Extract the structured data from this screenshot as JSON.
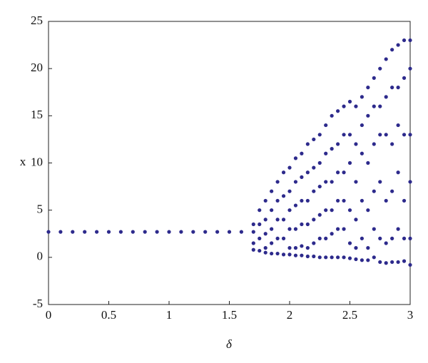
{
  "chart_data": {
    "type": "scatter",
    "xlabel": "δ",
    "ylabel": "x",
    "color": "#2d2a8c",
    "xlim": [
      0,
      3
    ],
    "ylim": [
      -5,
      25
    ],
    "xticks": [
      0,
      0.5,
      1,
      1.5,
      2,
      2.5,
      3
    ],
    "yticks": [
      -5,
      0,
      5,
      10,
      15,
      20,
      25
    ],
    "x": [
      0,
      0.1,
      0.2,
      0.3,
      0.4,
      0.5,
      0.6,
      0.7,
      0.8,
      0.9,
      1.0,
      1.1,
      1.2,
      1.3,
      1.4,
      1.5,
      1.6,
      1.7,
      1.7,
      1.7,
      1.7,
      1.75,
      1.75,
      1.75,
      1.75,
      1.8,
      1.8,
      1.8,
      1.8,
      1.8,
      1.85,
      1.85,
      1.85,
      1.85,
      1.85,
      1.9,
      1.9,
      1.9,
      1.9,
      1.9,
      1.95,
      1.95,
      1.95,
      1.95,
      1.95,
      2.0,
      2.0,
      2.0,
      2.0,
      2.0,
      2.0,
      2.05,
      2.05,
      2.05,
      2.05,
      2.05,
      2.05,
      2.1,
      2.1,
      2.1,
      2.1,
      2.1,
      2.1,
      2.15,
      2.15,
      2.15,
      2.15,
      2.15,
      2.15,
      2.2,
      2.2,
      2.2,
      2.2,
      2.2,
      2.2,
      2.25,
      2.25,
      2.25,
      2.25,
      2.25,
      2.25,
      2.3,
      2.3,
      2.3,
      2.3,
      2.3,
      2.3,
      2.35,
      2.35,
      2.35,
      2.35,
      2.35,
      2.35,
      2.4,
      2.4,
      2.4,
      2.4,
      2.4,
      2.4,
      2.45,
      2.45,
      2.45,
      2.45,
      2.45,
      2.45,
      2.5,
      2.5,
      2.5,
      2.5,
      2.5,
      2.5,
      2.55,
      2.55,
      2.55,
      2.55,
      2.55,
      2.55,
      2.6,
      2.6,
      2.6,
      2.6,
      2.6,
      2.6,
      2.65,
      2.65,
      2.65,
      2.65,
      2.65,
      2.65,
      2.7,
      2.7,
      2.7,
      2.7,
      2.7,
      2.7,
      2.75,
      2.75,
      2.75,
      2.75,
      2.75,
      2.75,
      2.8,
      2.8,
      2.8,
      2.8,
      2.8,
      2.8,
      2.85,
      2.85,
      2.85,
      2.85,
      2.85,
      2.85,
      2.9,
      2.9,
      2.9,
      2.9,
      2.9,
      2.9,
      2.95,
      2.95,
      2.95,
      2.95,
      2.95,
      2.95,
      3.0,
      3.0,
      3.0,
      3.0,
      3.0,
      3.0
    ],
    "values": [
      2.7,
      2.7,
      2.7,
      2.7,
      2.7,
      2.7,
      2.7,
      2.7,
      2.7,
      2.7,
      2.7,
      2.7,
      2.7,
      2.7,
      2.7,
      2.7,
      2.7,
      3.5,
      2.7,
      1.5,
      0.8,
      5,
      3.5,
      2,
      0.7,
      6,
      4,
      2.5,
      1,
      0.5,
      7,
      5,
      3,
      1.5,
      0.4,
      8,
      6,
      4,
      2,
      0.4,
      9,
      6.5,
      4,
      2,
      0.3,
      9.5,
      7,
      5,
      3,
      1,
      0.3,
      10.5,
      8,
      5.5,
      3,
      1,
      0.2,
      11,
      8.5,
      6,
      3.5,
      1.2,
      0.2,
      12,
      9,
      6,
      3.5,
      1,
      0.1,
      12.5,
      9.5,
      7,
      4,
      1.5,
      0.1,
      13,
      10,
      7.5,
      4.5,
      2,
      0,
      14,
      11,
      8,
      5,
      2,
      0,
      15,
      11.5,
      8,
      5,
      2.5,
      0,
      15.5,
      12,
      9,
      6,
      3,
      0,
      16,
      13,
      9,
      6,
      3,
      0,
      16.5,
      13,
      10,
      5,
      1.5,
      -0.1,
      16,
      12,
      8,
      4,
      1,
      -0.2,
      17,
      14,
      11,
      6,
      2,
      -0.3,
      18,
      15,
      10,
      5,
      1,
      -0.3,
      19,
      16,
      12,
      7,
      3,
      0,
      20,
      16,
      13,
      8,
      2,
      -0.5,
      21,
      17,
      13,
      6,
      1.5,
      -0.6,
      22,
      18,
      12,
      7,
      2,
      -0.5,
      22.5,
      18,
      14,
      9,
      3,
      -0.5,
      23,
      19,
      13,
      6,
      2,
      -0.4,
      23,
      20,
      13,
      8,
      2,
      -0.8
    ]
  }
}
